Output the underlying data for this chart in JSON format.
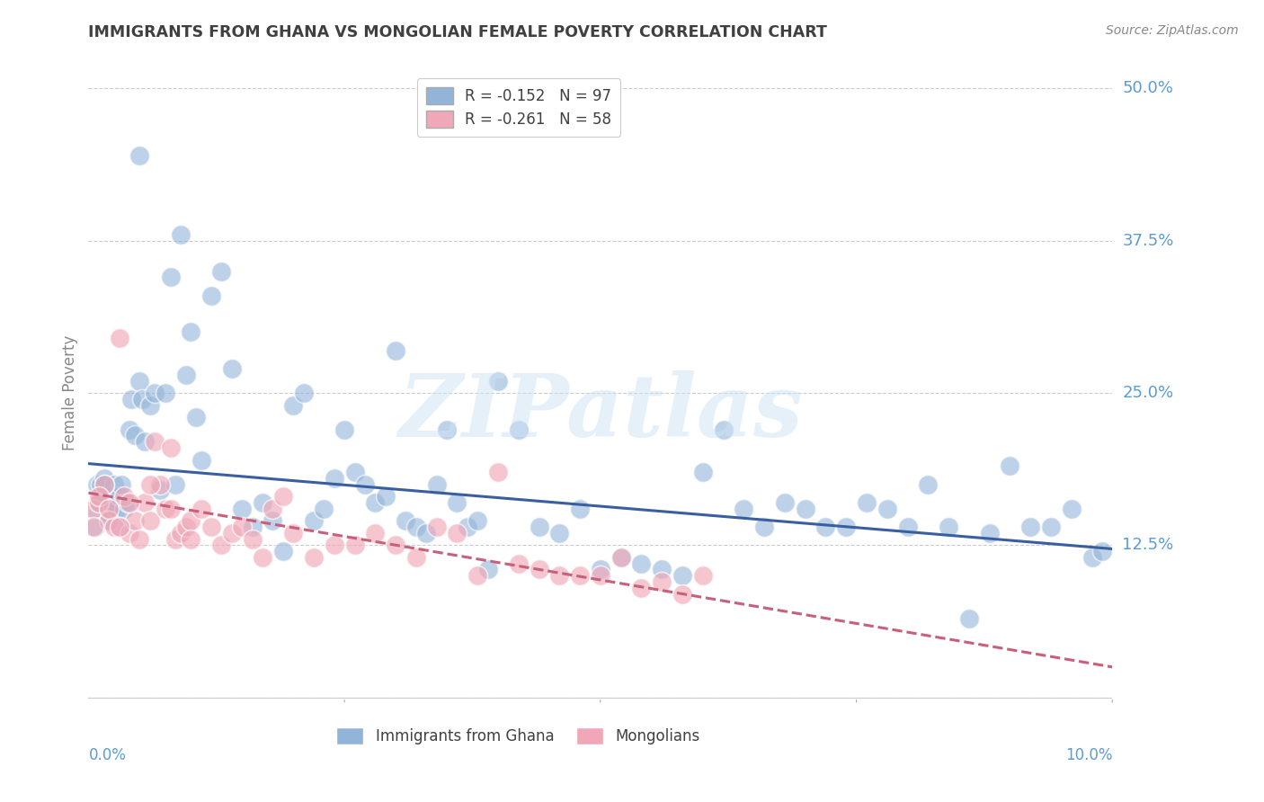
{
  "title": "IMMIGRANTS FROM GHANA VS MONGOLIAN FEMALE POVERTY CORRELATION CHART",
  "source": "Source: ZipAtlas.com",
  "ylabel": "Female Poverty",
  "yticks": [
    0.0,
    0.125,
    0.25,
    0.375,
    0.5
  ],
  "ytick_labels": [
    "",
    "12.5%",
    "25.0%",
    "37.5%",
    "50.0%"
  ],
  "xlim": [
    0.0,
    0.1
  ],
  "ylim": [
    -0.02,
    0.52
  ],
  "legend_entries_labels": [
    "R = -0.152   N = 97",
    "R = -0.261   N = 58"
  ],
  "legend_entries_colors": [
    "#92b4d9",
    "#f0a8b8"
  ],
  "legend_bottom": [
    "Immigrants from Ghana",
    "Mongolians"
  ],
  "ghana_color": "#92b4d9",
  "mongolia_color": "#f0a8b8",
  "ghana_line_color": "#3a5fa0",
  "mongolia_line_color": "#c8607a",
  "watermark_text": "ZIPatlas",
  "background_color": "#ffffff",
  "grid_color": "#cccccc",
  "tick_label_color": "#5b9bd5",
  "title_color": "#404040",
  "ghana_scatter_x": [
    0.0008,
    0.001,
    0.0012,
    0.0015,
    0.0018,
    0.002,
    0.0022,
    0.0025,
    0.0028,
    0.003,
    0.0032,
    0.0035,
    0.0038,
    0.004,
    0.0042,
    0.0045,
    0.005,
    0.0052,
    0.0055,
    0.006,
    0.0065,
    0.007,
    0.0075,
    0.008,
    0.0085,
    0.009,
    0.0095,
    0.01,
    0.0105,
    0.011,
    0.012,
    0.013,
    0.014,
    0.015,
    0.016,
    0.017,
    0.018,
    0.019,
    0.02,
    0.021,
    0.022,
    0.023,
    0.024,
    0.025,
    0.026,
    0.027,
    0.028,
    0.029,
    0.03,
    0.031,
    0.032,
    0.033,
    0.034,
    0.035,
    0.036,
    0.037,
    0.038,
    0.039,
    0.04,
    0.042,
    0.044,
    0.046,
    0.048,
    0.05,
    0.052,
    0.054,
    0.056,
    0.058,
    0.06,
    0.062,
    0.064,
    0.066,
    0.068,
    0.07,
    0.072,
    0.074,
    0.076,
    0.078,
    0.08,
    0.082,
    0.084,
    0.086,
    0.088,
    0.09,
    0.092,
    0.094,
    0.096,
    0.098,
    0.099,
    0.001,
    0.0005,
    0.0007,
    0.0009,
    0.0015,
    0.002,
    0.003,
    0.005
  ],
  "ghana_scatter_y": [
    0.175,
    0.16,
    0.175,
    0.18,
    0.155,
    0.145,
    0.155,
    0.175,
    0.155,
    0.165,
    0.175,
    0.155,
    0.16,
    0.22,
    0.245,
    0.215,
    0.26,
    0.245,
    0.21,
    0.24,
    0.25,
    0.17,
    0.25,
    0.345,
    0.175,
    0.38,
    0.265,
    0.3,
    0.23,
    0.195,
    0.33,
    0.35,
    0.27,
    0.155,
    0.14,
    0.16,
    0.145,
    0.12,
    0.24,
    0.25,
    0.145,
    0.155,
    0.18,
    0.22,
    0.185,
    0.175,
    0.16,
    0.165,
    0.285,
    0.145,
    0.14,
    0.135,
    0.175,
    0.22,
    0.16,
    0.14,
    0.145,
    0.105,
    0.26,
    0.22,
    0.14,
    0.135,
    0.155,
    0.105,
    0.115,
    0.11,
    0.105,
    0.1,
    0.185,
    0.22,
    0.155,
    0.14,
    0.16,
    0.155,
    0.14,
    0.14,
    0.16,
    0.155,
    0.14,
    0.175,
    0.14,
    0.065,
    0.135,
    0.19,
    0.14,
    0.14,
    0.155,
    0.115,
    0.12,
    0.16,
    0.155,
    0.14,
    0.16,
    0.175,
    0.145,
    0.14,
    0.445
  ],
  "mongolia_scatter_x": [
    0.0005,
    0.001,
    0.0015,
    0.002,
    0.0025,
    0.003,
    0.0035,
    0.004,
    0.0045,
    0.005,
    0.0055,
    0.006,
    0.0065,
    0.007,
    0.0075,
    0.008,
    0.0085,
    0.009,
    0.0095,
    0.01,
    0.011,
    0.012,
    0.013,
    0.014,
    0.015,
    0.016,
    0.017,
    0.018,
    0.019,
    0.02,
    0.022,
    0.024,
    0.026,
    0.028,
    0.03,
    0.032,
    0.034,
    0.036,
    0.038,
    0.04,
    0.042,
    0.044,
    0.046,
    0.048,
    0.05,
    0.052,
    0.054,
    0.056,
    0.058,
    0.06,
    0.0005,
    0.001,
    0.002,
    0.003,
    0.004,
    0.006,
    0.008,
    0.01
  ],
  "mongolia_scatter_y": [
    0.155,
    0.16,
    0.175,
    0.145,
    0.14,
    0.295,
    0.165,
    0.135,
    0.145,
    0.13,
    0.16,
    0.145,
    0.21,
    0.175,
    0.155,
    0.205,
    0.13,
    0.135,
    0.14,
    0.145,
    0.155,
    0.14,
    0.125,
    0.135,
    0.14,
    0.13,
    0.115,
    0.155,
    0.165,
    0.135,
    0.115,
    0.125,
    0.125,
    0.135,
    0.125,
    0.115,
    0.14,
    0.135,
    0.1,
    0.185,
    0.11,
    0.105,
    0.1,
    0.1,
    0.1,
    0.115,
    0.09,
    0.095,
    0.085,
    0.1,
    0.14,
    0.165,
    0.155,
    0.14,
    0.16,
    0.175,
    0.155,
    0.13
  ],
  "ghana_line_x": [
    0.0,
    0.1
  ],
  "ghana_line_y": [
    0.192,
    0.122
  ],
  "mongolia_line_x": [
    0.0,
    0.1
  ],
  "mongolia_line_y": [
    0.168,
    0.025
  ]
}
